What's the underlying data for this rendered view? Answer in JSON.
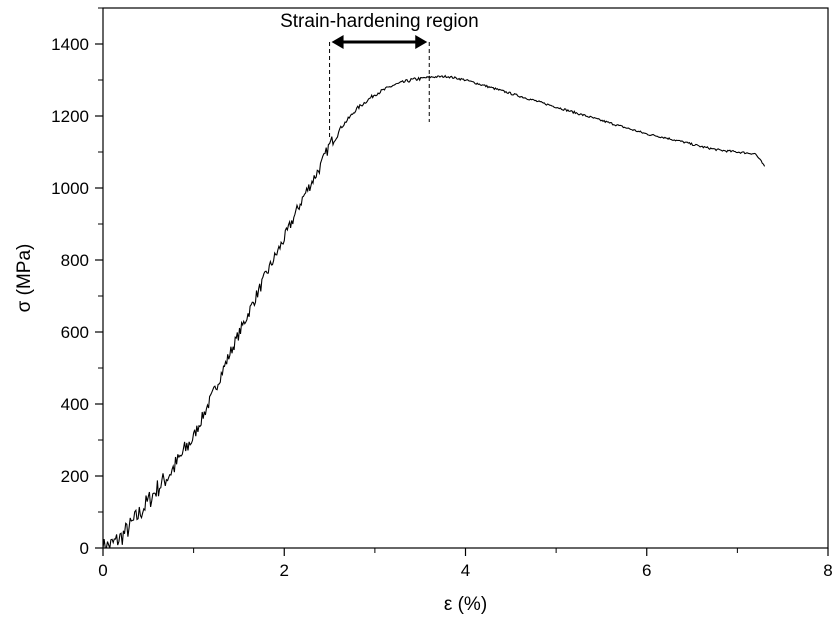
{
  "chart_data": {
    "type": "line",
    "title": "",
    "xlabel": "ε (%)",
    "ylabel": "σ (MPa)",
    "xlim": [
      0,
      8
    ],
    "ylim": [
      0,
      1500
    ],
    "xticks": [
      0,
      2,
      4,
      6,
      8
    ],
    "yticks": [
      0,
      200,
      400,
      600,
      800,
      1000,
      1200,
      1400
    ],
    "grid": false,
    "legend": "none",
    "line_color": "#000000",
    "series": [
      {
        "x": [
          0,
          0.1,
          0.2,
          0.3,
          0.4,
          0.5,
          0.6,
          0.7,
          0.8,
          0.9,
          1.0,
          1.2,
          1.4,
          1.6,
          1.8,
          2.0,
          2.2,
          2.4,
          2.5,
          2.6,
          2.8,
          3.0,
          3.2,
          3.4,
          3.6,
          3.8,
          4.0,
          4.2,
          4.4,
          4.6,
          4.8,
          5.0,
          5.2,
          5.4,
          5.6,
          5.8,
          6.0,
          6.2,
          6.4,
          6.6,
          6.8,
          7.0,
          7.2,
          7.3
        ],
        "y": [
          0,
          10,
          30,
          60,
          95,
          130,
          165,
          195,
          230,
          270,
          310,
          420,
          540,
          650,
          760,
          860,
          970,
          1060,
          1120,
          1160,
          1220,
          1260,
          1285,
          1300,
          1308,
          1310,
          1300,
          1285,
          1270,
          1255,
          1240,
          1225,
          1210,
          1195,
          1180,
          1165,
          1150,
          1140,
          1128,
          1115,
          1105,
          1100,
          1095,
          1060
        ]
      }
    ],
    "annotation": {
      "text": "Strain-hardening region",
      "x_start": 2.5,
      "x_end": 3.6
    }
  }
}
